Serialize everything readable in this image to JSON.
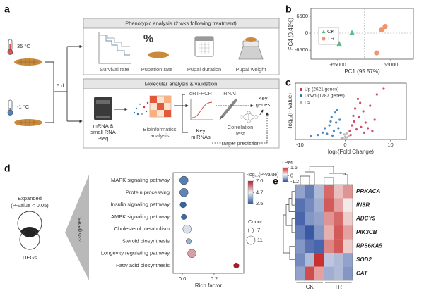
{
  "panel_labels": [
    "a",
    "b",
    "c",
    "d",
    "e"
  ],
  "workflow": {
    "temps": [
      "35 °C",
      "-1 °C"
    ],
    "duration": "5 d",
    "phenotypic": {
      "title": "Phenotypic analysis (2 wks following treatment)",
      "icon_symbol": "%",
      "items": [
        "Survival rate",
        "Pupation rate",
        "Pupal duration",
        "Pupal weight"
      ]
    },
    "molecular": {
      "title": "Molecular analysis & validation",
      "seq": [
        "mRNA &",
        "small RNA",
        "-seq"
      ],
      "bioinfo": [
        "Bioinformatics",
        "analysis"
      ],
      "qrtpcr": "qRT-PCR",
      "rnai": "RNAi",
      "key_genes": [
        "Key",
        "genes"
      ],
      "key_mirnas": [
        "Key",
        "miRNAs"
      ],
      "correlation": [
        "Correlation",
        "test"
      ],
      "target": "Target prediction"
    }
  },
  "venn": {
    "top": [
      "Expanded",
      "(P-value < 0.05)"
    ],
    "bottom": "DEGs",
    "wedge": "335 genes"
  },
  "chart_data": [
    {
      "type": "scatter",
      "xlabel": "PC1 (95.57%)",
      "ylabel": "PC4 (0.41%)",
      "xlim": [
        -131000,
        120500
      ],
      "ylim": [
        -9950,
        9420
      ],
      "xticks": [
        -65000,
        65000
      ],
      "yticks": [
        6500,
        0,
        -6500
      ],
      "zero_lines": true,
      "series": [
        {
          "name": "CK",
          "color": "#5db98c",
          "marker": "triangle",
          "x": [
            -96000,
            -61500,
            -30300
          ],
          "y": [
            -660,
            -4110,
            130
          ]
        },
        {
          "name": "TR",
          "color": "#f1946c",
          "marker": "circle",
          "x": [
            42500,
            51100,
            30300
          ],
          "y": [
            1190,
            2520,
            -7560
          ]
        }
      ]
    },
    {
      "type": "scatter",
      "xlabel": "log₂(Fold Change)",
      "ylabel": "-log₁₀(P-value)",
      "xlim": [
        -11,
        13.5
      ],
      "ylim": [
        0,
        10
      ],
      "xticks": [
        -10,
        0,
        10
      ],
      "series": [
        {
          "name": "Up (2621 genes)",
          "color": "#c3304c",
          "marker": "circle",
          "x": [
            1.0,
            1.5,
            2.0,
            2.5,
            3.0,
            3.5,
            4.0,
            1.2,
            2.2,
            4.5,
            5.0,
            6.0,
            3.3,
            5.5,
            7.0,
            8.5,
            2.8,
            1.8,
            4.2,
            6.5
          ],
          "y": [
            1.5,
            2.5,
            3.2,
            1.8,
            4.0,
            2.2,
            5.0,
            0.8,
            5.5,
            3.0,
            2.0,
            1.5,
            6.5,
            6.0,
            8.0,
            9.0,
            7.2,
            4.2,
            1.2,
            3.5
          ]
        },
        {
          "name": "Down (1787 genes)",
          "color": "#2f76b1",
          "marker": "circle",
          "x": [
            -1.0,
            -1.5,
            -2.0,
            -2.5,
            -3.0,
            -3.5,
            -4.0,
            -1.2,
            -2.2,
            -4.5,
            -5.0,
            -6.0,
            -1.8,
            -3.2,
            -7.5,
            -2.8
          ],
          "y": [
            1.2,
            2.0,
            3.0,
            1.5,
            4.0,
            2.5,
            1.0,
            3.5,
            4.8,
            2.0,
            1.2,
            0.8,
            5.2,
            3.2,
            0.6,
            0.7
          ]
        },
        {
          "name": "ns",
          "color": "#b0b0b0",
          "marker": "circle",
          "x": [
            -0.5,
            0,
            0.5,
            -0.2,
            0.3,
            -0.8,
            0.8,
            0.1
          ],
          "y": [
            0.3,
            0.5,
            0.4,
            0.9,
            1.1,
            0.2,
            0.6,
            0.2
          ]
        }
      ]
    },
    {
      "type": "dot",
      "xlabel": "Rich factor",
      "categories": [
        "MAPK signaling pathway",
        "Protein processing",
        "Insulin signaling pathway",
        "AMPK signaling pathway",
        "Cholesterol metabolism",
        "Steroid biosynthesis",
        "Longevity regulating pathway",
        "Fatty acid biosynthesis"
      ],
      "values": [
        0.01,
        0.01,
        0.005,
        0.01,
        0.03,
        0.04,
        0.06,
        0.34
      ],
      "color_values": [
        3.0,
        3.1,
        2.6,
        2.7,
        4.5,
        3.8,
        5.6,
        7.0
      ],
      "size_values": [
        11,
        11,
        8,
        7,
        11,
        7,
        11,
        7
      ],
      "xlim": [
        -0.058,
        0.387
      ],
      "xticks": [
        {
          "value": 0,
          "label": "0.0"
        },
        0.2
      ],
      "colorbar": {
        "title": "-log₁₀(P-value)",
        "range": [
          2.5,
          7.0
        ],
        "colors": [
          "#2a5d9f",
          "#eef0f2",
          "#b2182b"
        ],
        "ticks": [
          {
            "value": 7,
            "label": "7.0"
          },
          4.7,
          2.5
        ]
      },
      "size_legend": {
        "title": "Count",
        "values": [
          7,
          11
        ]
      }
    },
    {
      "type": "heatmap",
      "rows": [
        "PRKACA",
        "INSR",
        "ADCY9",
        "PIK3CB",
        "RPS6KA5",
        "SOD2",
        "CAT"
      ],
      "groups": [
        "CK",
        "TR"
      ],
      "values": [
        [
          -0.5,
          -0.8,
          -0.3,
          1.2,
          0.6,
          0.9
        ],
        [
          -0.9,
          -0.7,
          -0.4,
          1.3,
          0.8,
          0.3
        ],
        [
          -1.0,
          -0.6,
          -0.5,
          0.9,
          1.2,
          0.5
        ],
        [
          -0.8,
          -1.1,
          -0.6,
          0.7,
          1.3,
          0.8
        ],
        [
          -0.6,
          -0.9,
          -1.0,
          1.0,
          1.3,
          0.5
        ],
        [
          -0.7,
          -0.3,
          1.6,
          -0.2,
          -0.3,
          -0.5
        ],
        [
          -0.5,
          1.4,
          0.8,
          -0.4,
          -0.3,
          -0.6
        ]
      ],
      "colorbar": {
        "title": "TPM",
        "range": [
          -1.2,
          1.6
        ],
        "colors": [
          "#2c4d9e",
          "#f7f7f7",
          "#c8312f"
        ],
        "ticks": [
          1.6,
          0,
          -1.2
        ]
      }
    }
  ]
}
